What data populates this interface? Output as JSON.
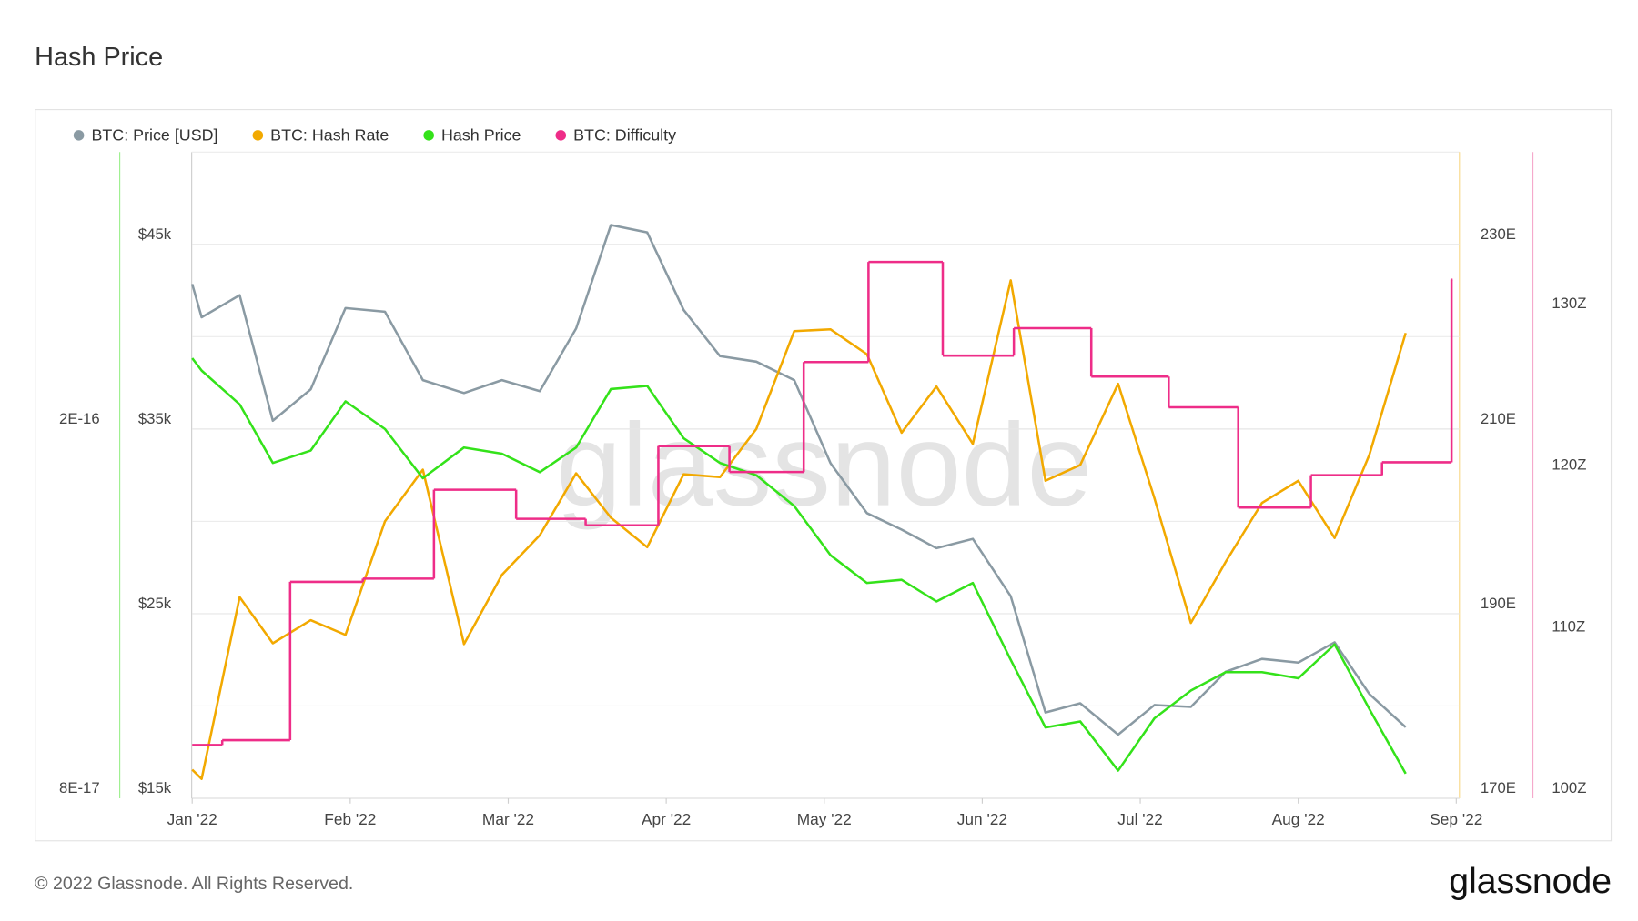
{
  "footer": "© 2022 Glassnode. All Rights Reserved.",
  "logo": "glassnode",
  "watermark": "glassnode",
  "chart_data": {
    "type": "line",
    "title": "Hash Price",
    "x": [
      0,
      0.06,
      0.3,
      0.51,
      0.75,
      0.97,
      1.22,
      1.46,
      1.72,
      1.96,
      2.2,
      2.43,
      2.65,
      2.88,
      3.11,
      3.34,
      3.57,
      3.81,
      4.04,
      4.27,
      4.49,
      4.71,
      4.94,
      5.18,
      5.4,
      5.62,
      5.86,
      6.09,
      6.32,
      6.54,
      6.77,
      7.0,
      7.23,
      7.45,
      7.68
    ],
    "xlim": [
      0,
      8
    ],
    "xticks": [
      {
        "value": 0,
        "label": "Jan '22"
      },
      {
        "value": 1,
        "label": "Feb '22"
      },
      {
        "value": 2,
        "label": "Mar '22"
      },
      {
        "value": 3,
        "label": "Apr '22"
      },
      {
        "value": 4,
        "label": "May '22"
      },
      {
        "value": 5,
        "label": "Jun '22"
      },
      {
        "value": 6,
        "label": "Jul '22"
      },
      {
        "value": 7,
        "label": "Aug '22"
      },
      {
        "value": 8,
        "label": "Sep '22"
      }
    ],
    "ylim": [
      15000,
      50000
    ],
    "yticks": [
      {
        "value": 15000,
        "label": "$15k"
      },
      {
        "value": 25000,
        "label": "$25k"
      },
      {
        "value": 35000,
        "label": "$35k"
      },
      {
        "value": 45000,
        "label": "$45k"
      }
    ],
    "minor_yticks": [
      20000,
      30000,
      40000
    ],
    "y2lim": [
      170,
      240
    ],
    "y2ticks": [
      {
        "value": 170,
        "label": "170E"
      },
      {
        "value": 190,
        "label": "190E"
      },
      {
        "value": 210,
        "label": "210E"
      },
      {
        "value": 230,
        "label": "230E"
      }
    ],
    "y3lim": [
      8e-17,
      2.9e-16
    ],
    "y3ticks": [
      {
        "value": 8e-17,
        "label": "8E-17"
      },
      {
        "value": 2e-16,
        "label": "2E-16"
      }
    ],
    "y4lim": [
      100,
      140
    ],
    "y4ticks": [
      {
        "value": 100,
        "label": "100Z"
      },
      {
        "value": 110,
        "label": "110Z"
      },
      {
        "value": 120,
        "label": "120Z"
      },
      {
        "value": 130,
        "label": "130Z"
      }
    ],
    "grid": true,
    "legend": "top-left",
    "series": [
      {
        "name": "BTC: Price [USD]",
        "color": "#8a9aa3",
        "axis": "y",
        "values": [
          42850,
          41050,
          42250,
          35450,
          37150,
          41550,
          41350,
          37650,
          36950,
          37650,
          37050,
          40450,
          46050,
          45650,
          41450,
          38950,
          38650,
          37650,
          33150,
          30450,
          29550,
          28550,
          29050,
          25950,
          19650,
          20150,
          18450,
          20050,
          19950,
          21850,
          22550,
          22350,
          23450,
          20650,
          18850
        ]
      },
      {
        "name": "BTC: Hash Rate",
        "color": "#f2a900",
        "axis": "y2",
        "values": [
          173.1,
          172.1,
          191.8,
          186.8,
          189.3,
          187.7,
          200.0,
          205.6,
          186.7,
          194.2,
          198.5,
          205.2,
          200.4,
          197.2,
          205.1,
          204.8,
          210.0,
          220.6,
          220.8,
          218.1,
          209.6,
          214.6,
          208.4,
          226.1,
          204.4,
          206.1,
          214.9,
          202.5,
          189.0,
          195.6,
          202.0,
          204.4,
          198.2,
          207.2,
          220.4
        ]
      },
      {
        "name": "Hash Price",
        "color": "#34e21a",
        "axis": "y3",
        "values": [
          2.23e-16,
          2.19e-16,
          2.08e-16,
          1.89e-16,
          1.93e-16,
          2.09e-16,
          2e-16,
          1.84e-16,
          1.94e-16,
          1.92e-16,
          1.86e-16,
          1.94e-16,
          2.13e-16,
          2.14e-16,
          1.97e-16,
          1.89e-16,
          1.85e-16,
          1.75e-16,
          1.59e-16,
          1.5e-16,
          1.51e-16,
          1.44e-16,
          1.5e-16,
          1.25e-16,
          1.03e-16,
          1.05e-16,
          8.9e-17,
          1.06e-16,
          1.15e-16,
          1.21e-16,
          1.21e-16,
          1.19e-16,
          1.3e-16,
          1.09e-16,
          8.8e-17
        ]
      },
      {
        "name": "BTC: Difficulty",
        "color": "#ee2d88",
        "axis": "y4",
        "step": true,
        "x": [
          0,
          0.19,
          0.62,
          1.08,
          1.53,
          2.05,
          2.49,
          2.95,
          3.4,
          3.87,
          4.28,
          4.75,
          5.2,
          5.69,
          6.18,
          6.62,
          7.08,
          7.53,
          7.97
        ],
        "values": [
          103.3,
          103.6,
          113.4,
          113.6,
          119.1,
          117.3,
          116.9,
          121.8,
          120.2,
          127.0,
          133.2,
          127.4,
          129.1,
          126.1,
          124.2,
          118.0,
          120.0,
          120.8,
          132.1
        ]
      }
    ]
  }
}
